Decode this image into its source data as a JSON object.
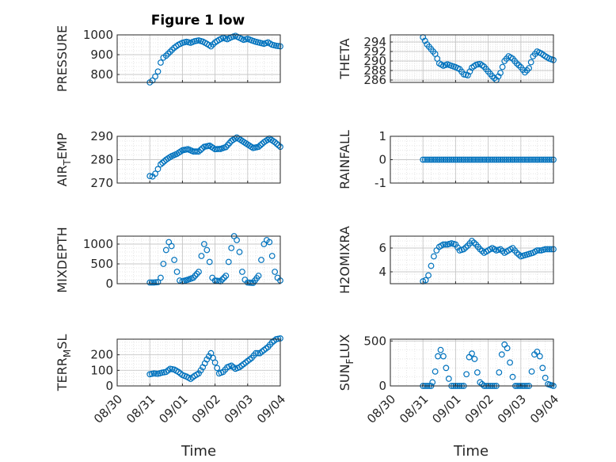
{
  "figure": {
    "title": "Figure 1 low"
  },
  "colors": {
    "marker": "#0072BD",
    "axis": "#262626",
    "grid": "#c8c8c8"
  },
  "chart_data": [
    {
      "type": "scatter",
      "ylabel": "PRESSURE",
      "xlim": [
        "08/30",
        "09/04"
      ],
      "ylim": [
        760,
        1000
      ],
      "yticks": [
        800,
        900,
        1000
      ],
      "grid": true,
      "marker": "circle",
      "points": [
        [
          "08/31 00:00",
          760
        ],
        [
          "08/31 02:00",
          770
        ],
        [
          "08/31 04:00",
          790
        ],
        [
          "08/31 06:00",
          815
        ],
        [
          "08/31 08:00",
          860
        ],
        [
          "08/31 10:00",
          885
        ],
        [
          "08/31 12:00",
          895
        ],
        [
          "08/31 15:00",
          915
        ],
        [
          "08/31 18:00",
          935
        ],
        [
          "08/31 21:00",
          950
        ],
        [
          "09/01 00:00",
          960
        ],
        [
          "09/01 03:00",
          965
        ],
        [
          "09/01 06:00",
          960
        ],
        [
          "09/01 09:00",
          968
        ],
        [
          "09/01 12:00",
          972
        ],
        [
          "09/01 15:00",
          966
        ],
        [
          "09/01 18:00",
          955
        ],
        [
          "09/01 21:00",
          942
        ],
        [
          "09/02 00:00",
          962
        ],
        [
          "09/02 03:00",
          975
        ],
        [
          "09/02 06:00",
          985
        ],
        [
          "09/02 09:00",
          978
        ],
        [
          "09/02 12:00",
          988
        ],
        [
          "09/02 15:00",
          995
        ],
        [
          "09/02 18:00",
          985
        ],
        [
          "09/02 21:00",
          975
        ],
        [
          "09/03 00:00",
          980
        ],
        [
          "09/03 03:00",
          972
        ],
        [
          "09/03 06:00",
          965
        ],
        [
          "09/03 09:00",
          960
        ],
        [
          "09/03 12:00",
          955
        ],
        [
          "09/03 15:00",
          962
        ],
        [
          "09/03 18:00",
          950
        ],
        [
          "09/03 21:00",
          945
        ],
        [
          "09/04 00:00",
          942
        ]
      ]
    },
    {
      "type": "scatter",
      "ylabel": "THETA",
      "xlim": [
        "08/30",
        "09/04"
      ],
      "ylim": [
        285.5,
        295.5
      ],
      "yticks": [
        286,
        288,
        290,
        292,
        294
      ],
      "grid": true,
      "marker": "circle",
      "points": [
        [
          "08/31 00:00",
          295
        ],
        [
          "08/31 03:00",
          293.5
        ],
        [
          "08/31 06:00",
          292.5
        ],
        [
          "08/31 09:00",
          291.5
        ],
        [
          "08/31 12:00",
          289.5
        ],
        [
          "08/31 15:00",
          289
        ],
        [
          "08/31 18:00",
          289.3
        ],
        [
          "08/31 21:00",
          289
        ],
        [
          "09/01 00:00",
          288.7
        ],
        [
          "09/01 03:00",
          288.3
        ],
        [
          "09/01 06:00",
          287.2
        ],
        [
          "09/01 09:00",
          287
        ],
        [
          "09/01 12:00",
          288.6
        ],
        [
          "09/01 15:00",
          289.2
        ],
        [
          "09/01 18:00",
          289.4
        ],
        [
          "09/01 21:00",
          288.8
        ],
        [
          "09/02 00:00",
          287.8
        ],
        [
          "09/02 03:00",
          286.8
        ],
        [
          "09/02 06:00",
          286
        ],
        [
          "09/02 09:00",
          287.5
        ],
        [
          "09/02 12:00",
          290
        ],
        [
          "09/02 15:00",
          291
        ],
        [
          "09/02 18:00",
          290.5
        ],
        [
          "09/02 21:00",
          289.5
        ],
        [
          "09/03 00:00",
          288.7
        ],
        [
          "09/03 03:00",
          287.6
        ],
        [
          "09/03 06:00",
          288.5
        ],
        [
          "09/03 09:00",
          291
        ],
        [
          "09/03 12:00",
          292
        ],
        [
          "09/03 15:00",
          291.6
        ],
        [
          "09/03 18:00",
          291
        ],
        [
          "09/03 21:00",
          290.5
        ],
        [
          "09/04 00:00",
          290.2
        ]
      ]
    },
    {
      "type": "scatter",
      "ylabel": "AIR_TEMP",
      "xlim": [
        "08/30",
        "09/04"
      ],
      "ylim": [
        270,
        290
      ],
      "yticks": [
        270,
        280,
        290
      ],
      "grid": true,
      "marker": "circle",
      "points": [
        [
          "08/31 00:00",
          273
        ],
        [
          "08/31 02:00",
          272.8
        ],
        [
          "08/31 04:00",
          274
        ],
        [
          "08/31 06:00",
          276
        ],
        [
          "08/31 08:00",
          278
        ],
        [
          "08/31 12:00",
          280
        ],
        [
          "08/31 16:00",
          281.5
        ],
        [
          "08/31 20:00",
          282.5
        ],
        [
          "09/01 00:00",
          284
        ],
        [
          "09/01 04:00",
          284.5
        ],
        [
          "09/01 08:00",
          283.5
        ],
        [
          "09/01 12:00",
          283.5
        ],
        [
          "09/01 16:00",
          285.5
        ],
        [
          "09/01 20:00",
          286
        ],
        [
          "09/02 00:00",
          284.5
        ],
        [
          "09/02 04:00",
          284.6
        ],
        [
          "09/02 08:00",
          285.4
        ],
        [
          "09/02 12:00",
          288
        ],
        [
          "09/02 16:00",
          289.5
        ],
        [
          "09/02 20:00",
          288
        ],
        [
          "09/03 00:00",
          286.5
        ],
        [
          "09/03 04:00",
          285
        ],
        [
          "09/03 08:00",
          285.5
        ],
        [
          "09/03 12:00",
          287.5
        ],
        [
          "09/03 16:00",
          289
        ],
        [
          "09/03 20:00",
          287.5
        ],
        [
          "09/04 00:00",
          285.5
        ]
      ]
    },
    {
      "type": "scatter",
      "ylabel": "RAINFALL",
      "xlim": [
        "08/30",
        "09/04"
      ],
      "ylim": [
        -1,
        1
      ],
      "yticks": [
        -1,
        0,
        1
      ],
      "grid": true,
      "marker": "circle",
      "points": [
        [
          "08/31 00:00",
          0
        ],
        [
          "08/31 12:00",
          0
        ],
        [
          "09/01 00:00",
          0
        ],
        [
          "09/01 12:00",
          0
        ],
        [
          "09/02 00:00",
          0
        ],
        [
          "09/02 12:00",
          0
        ],
        [
          "09/03 00:00",
          0
        ],
        [
          "09/03 12:00",
          0
        ],
        [
          "09/04 00:00",
          0
        ]
      ]
    },
    {
      "type": "scatter",
      "ylabel": "MIXDEPTH",
      "xlim": [
        "08/30",
        "09/04"
      ],
      "ylim": [
        0,
        1200
      ],
      "yticks": [
        0,
        500,
        1000
      ],
      "grid": true,
      "marker": "circle",
      "points": [
        [
          "08/31 00:00",
          30
        ],
        [
          "08/31 03:00",
          30
        ],
        [
          "08/31 06:00",
          40
        ],
        [
          "08/31 08:00",
          150
        ],
        [
          "08/31 10:00",
          500
        ],
        [
          "08/31 12:00",
          850
        ],
        [
          "08/31 14:00",
          1050
        ],
        [
          "08/31 16:00",
          950
        ],
        [
          "08/31 18:00",
          600
        ],
        [
          "08/31 20:00",
          300
        ],
        [
          "08/31 22:00",
          80
        ],
        [
          "09/01 00:00",
          60
        ],
        [
          "09/01 04:00",
          100
        ],
        [
          "09/01 08:00",
          150
        ],
        [
          "09/01 12:00",
          300
        ],
        [
          "09/01 14:00",
          700
        ],
        [
          "09/01 16:00",
          1000
        ],
        [
          "09/01 18:00",
          850
        ],
        [
          "09/01 20:00",
          550
        ],
        [
          "09/01 22:00",
          150
        ],
        [
          "09/02 00:00",
          80
        ],
        [
          "09/02 04:00",
          60
        ],
        [
          "09/02 08:00",
          200
        ],
        [
          "09/02 10:00",
          550
        ],
        [
          "09/02 12:00",
          900
        ],
        [
          "09/02 14:00",
          1200
        ],
        [
          "09/02 16:00",
          1100
        ],
        [
          "09/02 18:00",
          800
        ],
        [
          "09/02 20:00",
          300
        ],
        [
          "09/02 22:00",
          100
        ],
        [
          "09/03 00:00",
          30
        ],
        [
          "09/03 04:00",
          20
        ],
        [
          "09/03 08:00",
          200
        ],
        [
          "09/03 10:00",
          600
        ],
        [
          "09/03 12:00",
          1000
        ],
        [
          "09/03 14:00",
          1100
        ],
        [
          "09/03 16:00",
          1050
        ],
        [
          "09/03 18:00",
          700
        ],
        [
          "09/03 20:00",
          300
        ],
        [
          "09/03 22:00",
          150
        ],
        [
          "09/04 00:00",
          80
        ]
      ]
    },
    {
      "type": "scatter",
      "ylabel": "H2OMIXRA",
      "xlim": [
        "08/30",
        "09/04"
      ],
      "ylim": [
        3,
        7
      ],
      "yticks": [
        4,
        6
      ],
      "grid": true,
      "marker": "circle",
      "points": [
        [
          "08/31 00:00",
          3.2
        ],
        [
          "08/31 02:00",
          3.3
        ],
        [
          "08/31 04:00",
          3.7
        ],
        [
          "08/31 06:00",
          4.5
        ],
        [
          "08/31 08:00",
          5.3
        ],
        [
          "08/31 10:00",
          5.8
        ],
        [
          "08/31 12:00",
          6.1
        ],
        [
          "08/31 15:00",
          6.3
        ],
        [
          "08/31 18:00",
          6.3
        ],
        [
          "08/31 21:00",
          6.4
        ],
        [
          "09/01 00:00",
          6.3
        ],
        [
          "09/01 03:00",
          5.8
        ],
        [
          "09/01 06:00",
          5.9
        ],
        [
          "09/01 09:00",
          6.2
        ],
        [
          "09/01 12:00",
          6.6
        ],
        [
          "09/01 15:00",
          6.3
        ],
        [
          "09/01 18:00",
          5.9
        ],
        [
          "09/01 21:00",
          5.6
        ],
        [
          "09/02 00:00",
          5.8
        ],
        [
          "09/02 03:00",
          6
        ],
        [
          "09/02 06:00",
          5.8
        ],
        [
          "09/02 09:00",
          5.9
        ],
        [
          "09/02 12:00",
          5.6
        ],
        [
          "09/02 15:00",
          5.8
        ],
        [
          "09/02 18:00",
          6
        ],
        [
          "09/02 21:00",
          5.6
        ],
        [
          "09/03 00:00",
          5.3
        ],
        [
          "09/03 03:00",
          5.4
        ],
        [
          "09/03 06:00",
          5.5
        ],
        [
          "09/03 09:00",
          5.6
        ],
        [
          "09/03 12:00",
          5.8
        ],
        [
          "09/03 15:00",
          5.8
        ],
        [
          "09/03 18:00",
          5.9
        ],
        [
          "09/03 21:00",
          5.9
        ],
        [
          "09/04 00:00",
          5.9
        ]
      ]
    },
    {
      "type": "scatter",
      "ylabel": "TERR_MSL",
      "xlim": [
        "08/30",
        "09/04"
      ],
      "ylim": [
        0,
        300
      ],
      "yticks": [
        0,
        100,
        200
      ],
      "grid": true,
      "marker": "circle",
      "points": [
        [
          "08/31 00:00",
          75
        ],
        [
          "08/31 03:00",
          80
        ],
        [
          "08/31 06:00",
          78
        ],
        [
          "08/31 09:00",
          85
        ],
        [
          "08/31 12:00",
          90
        ],
        [
          "08/31 15:00",
          110
        ],
        [
          "08/31 18:00",
          105
        ],
        [
          "08/31 21:00",
          90
        ],
        [
          "09/01 00:00",
          70
        ],
        [
          "09/01 03:00",
          60
        ],
        [
          "09/01 06:00",
          45
        ],
        [
          "09/01 09:00",
          65
        ],
        [
          "09/01 12:00",
          80
        ],
        [
          "09/01 15:00",
          120
        ],
        [
          "09/01 18:00",
          170
        ],
        [
          "09/01 21:00",
          210
        ],
        [
          "09/02 00:00",
          150
        ],
        [
          "09/02 03:00",
          80
        ],
        [
          "09/02 06:00",
          90
        ],
        [
          "09/02 09:00",
          120
        ],
        [
          "09/02 12:00",
          130
        ],
        [
          "09/02 15:00",
          110
        ],
        [
          "09/02 18:00",
          120
        ],
        [
          "09/02 21:00",
          140
        ],
        [
          "09/03 00:00",
          160
        ],
        [
          "09/03 03:00",
          180
        ],
        [
          "09/03 06:00",
          210
        ],
        [
          "09/03 09:00",
          210
        ],
        [
          "09/03 12:00",
          230
        ],
        [
          "09/03 15:00",
          250
        ],
        [
          "09/03 18:00",
          280
        ],
        [
          "09/03 21:00",
          300
        ],
        [
          "09/04 00:00",
          305
        ]
      ]
    },
    {
      "type": "scatter",
      "ylabel": "SUN_FLUX",
      "xlim": [
        "08/30",
        "09/04"
      ],
      "ylim": [
        0,
        520
      ],
      "yticks": [
        0,
        500
      ],
      "grid": true,
      "marker": "circle",
      "points": [
        [
          "08/31 00:00",
          0
        ],
        [
          "08/31 03:00",
          0
        ],
        [
          "08/31 06:00",
          0
        ],
        [
          "08/31 07:00",
          40
        ],
        [
          "08/31 09:00",
          160
        ],
        [
          "08/31 11:00",
          330
        ],
        [
          "08/31 13:00",
          400
        ],
        [
          "08/31 15:00",
          330
        ],
        [
          "08/31 17:00",
          200
        ],
        [
          "08/31 19:00",
          80
        ],
        [
          "08/31 21:00",
          0
        ],
        [
          "09/01 00:00",
          0
        ],
        [
          "09/01 06:00",
          0
        ],
        [
          "09/01 08:00",
          130
        ],
        [
          "09/01 10:00",
          320
        ],
        [
          "09/01 12:00",
          360
        ],
        [
          "09/01 14:00",
          300
        ],
        [
          "09/01 16:00",
          150
        ],
        [
          "09/01 18:00",
          40
        ],
        [
          "09/01 21:00",
          0
        ],
        [
          "09/02 00:00",
          0
        ],
        [
          "09/02 06:00",
          0
        ],
        [
          "09/02 08:00",
          150
        ],
        [
          "09/02 10:00",
          350
        ],
        [
          "09/02 12:00",
          460
        ],
        [
          "09/02 14:00",
          420
        ],
        [
          "09/02 16:00",
          260
        ],
        [
          "09/02 18:00",
          100
        ],
        [
          "09/02 20:00",
          0
        ],
        [
          "09/03 00:00",
          0
        ],
        [
          "09/03 06:00",
          0
        ],
        [
          "09/03 08:00",
          160
        ],
        [
          "09/03 10:00",
          350
        ],
        [
          "09/03 12:00",
          380
        ],
        [
          "09/03 14:00",
          330
        ],
        [
          "09/03 16:00",
          200
        ],
        [
          "09/03 18:00",
          90
        ],
        [
          "09/03 20:00",
          20
        ],
        [
          "09/04 00:00",
          0
        ]
      ]
    }
  ],
  "axes_text": {
    "x_ticks": [
      "08/30",
      "08/31",
      "09/01",
      "09/02",
      "09/03",
      "09/04"
    ],
    "x_label_left": "Time",
    "x_label_right": "Time"
  }
}
